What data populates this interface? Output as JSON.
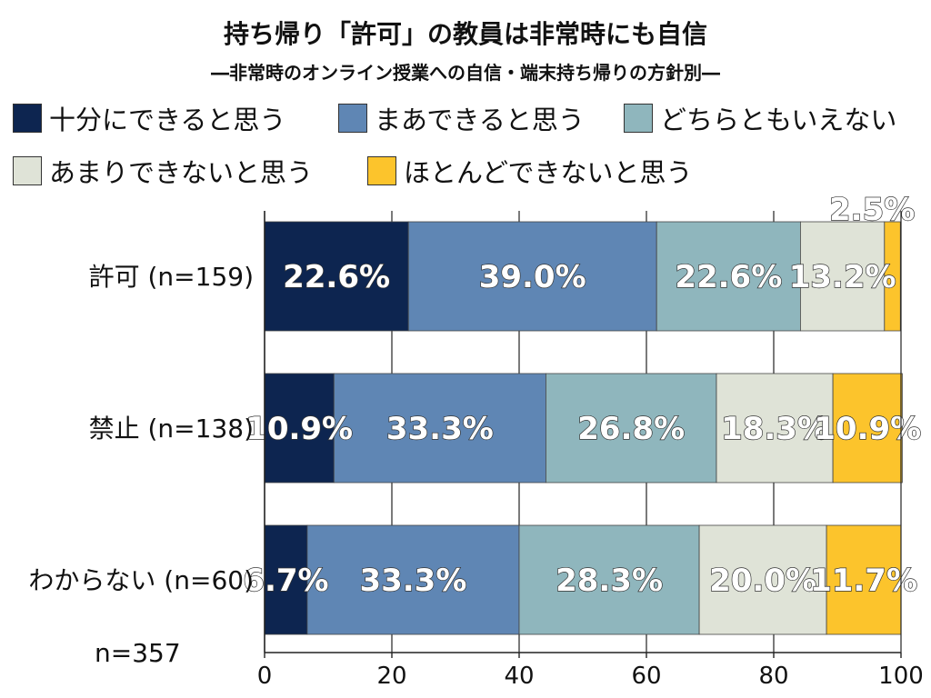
{
  "chart_data": {
    "type": "bar",
    "orientation": "horizontal",
    "stacked": true,
    "title": "持ち帰り「許可」の教員は非常時にも自信",
    "subtitle": "―非常時のオンライン授業への自信・端末持ち帰りの方針別―",
    "categories": [
      "許可 (n=159)",
      "禁止 (n=138)",
      "わからない (n=60)"
    ],
    "series": [
      {
        "name": "十分にできると思う",
        "color": "#0d2550",
        "values": [
          22.6,
          10.9,
          6.7
        ]
      },
      {
        "name": "まあできると思う",
        "color": "#5f86b4",
        "values": [
          39.0,
          33.3,
          33.3
        ]
      },
      {
        "name": "どちらともいえない",
        "color": "#8fb6bd",
        "values": [
          22.6,
          26.8,
          28.3
        ]
      },
      {
        "name": "あまりできないと思う",
        "color": "#dfe3d7",
        "values": [
          13.2,
          18.3,
          20.0
        ]
      },
      {
        "name": "ほとんどできないと思う",
        "color": "#fcc42c",
        "values": [
          2.5,
          10.9,
          11.7
        ]
      }
    ],
    "data_labels": [
      [
        "22.6%",
        "39.0%",
        "22.6%",
        "13.2%",
        "2.5%"
      ],
      [
        "10.9%",
        "33.3%",
        "26.8%",
        "18.3%",
        "10.9%"
      ],
      [
        "6.7%",
        "33.3%",
        "28.3%",
        "20.0%",
        "11.7%"
      ]
    ],
    "xlim": [
      0,
      100
    ],
    "xticks": [
      "0",
      "20",
      "40",
      "60",
      "80",
      "100"
    ],
    "grid": true,
    "legend_position": "top",
    "note": "n=357"
  }
}
